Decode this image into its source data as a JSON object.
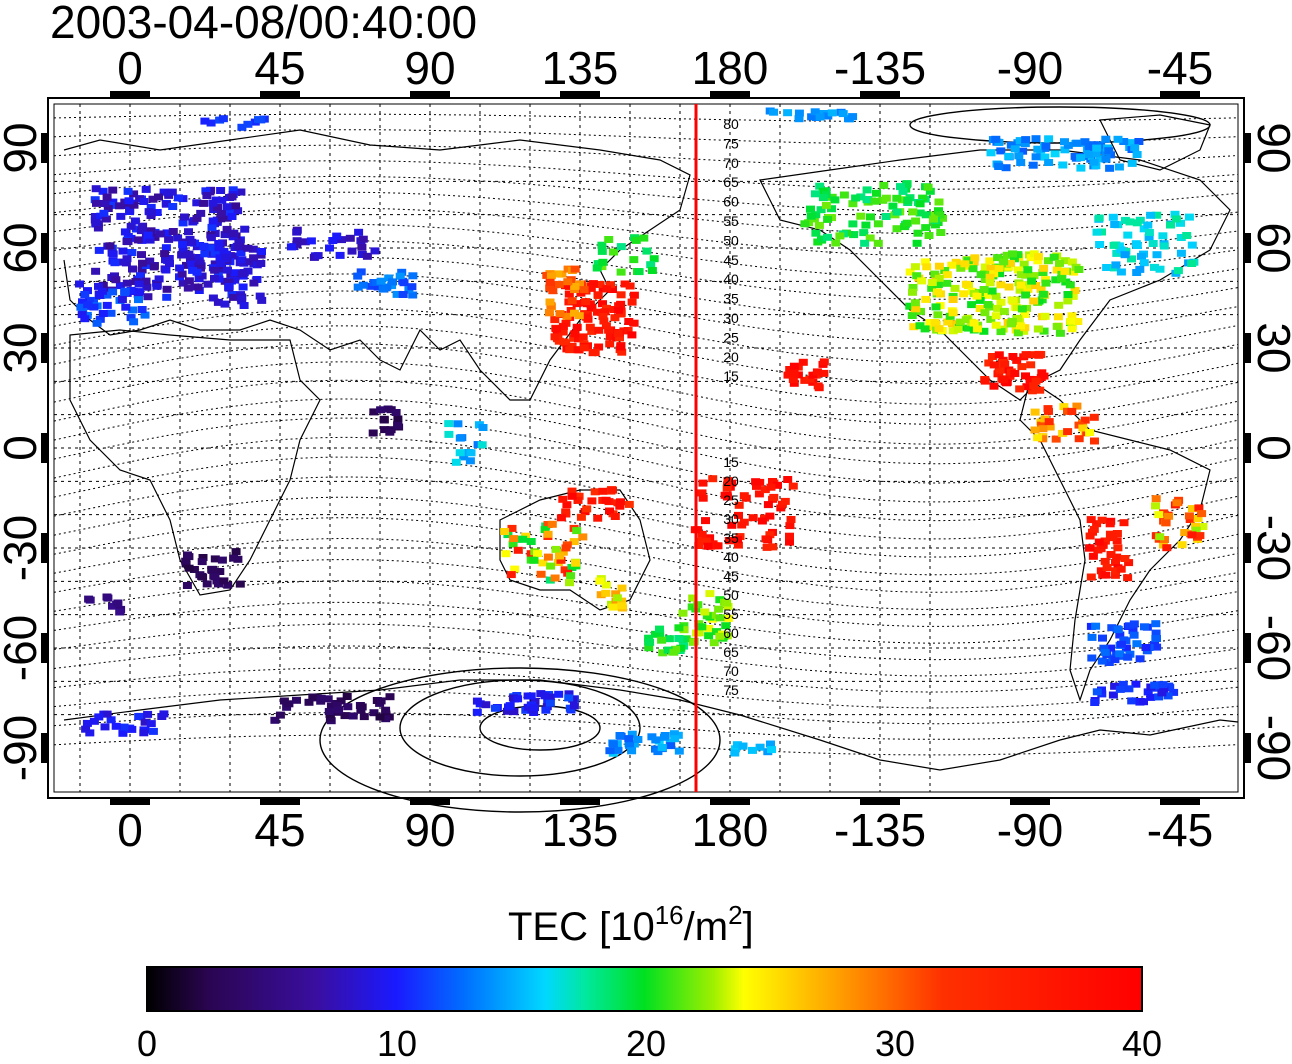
{
  "map": {
    "title": "2003-04-08/00:40:00",
    "top_axis_labels": [
      "0",
      "45",
      "90",
      "135",
      "180",
      "-135",
      "-90",
      "-45"
    ],
    "bottom_axis_labels": [
      "0",
      "45",
      "90",
      "135",
      "180",
      "-135",
      "-90",
      "-45"
    ],
    "lat_axis_labels": [
      "90",
      "60",
      "30",
      "0",
      "-30",
      "-60",
      "-90"
    ],
    "contour_labels_north": [
      "80",
      "75",
      "70",
      "65",
      "60",
      "55",
      "50",
      "45",
      "40",
      "35",
      "30",
      "25",
      "20",
      "15"
    ],
    "contour_labels_south": [
      "15",
      "20",
      "25",
      "30",
      "35",
      "40",
      "45",
      "50",
      "55",
      "60",
      "65",
      "70",
      "75"
    ],
    "terminator_longitude": 170,
    "colors": {
      "terminator": "#ff0000",
      "frame": "#000000"
    }
  },
  "colorbar": {
    "title": "TEC  [10",
    "exponent": "16",
    "unit_mid": "/m",
    "unit_exp": "2",
    "unit_end": "]",
    "min": 0,
    "max": 40,
    "tick_labels": [
      "0",
      "10",
      "20",
      "30",
      "40"
    ]
  }
}
